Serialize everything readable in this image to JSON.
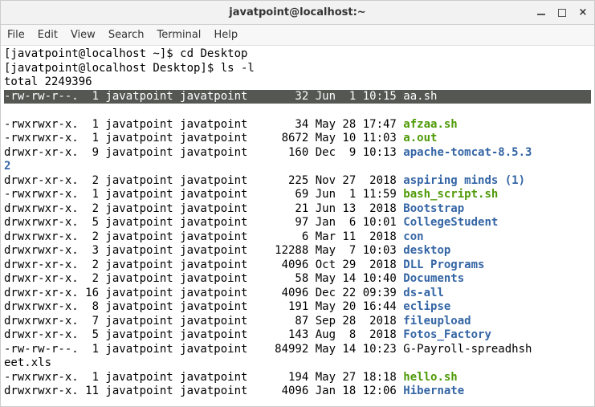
{
  "window": {
    "title": "javatpoint@localhost:~"
  },
  "menu": {
    "items": [
      "File",
      "Edit",
      "View",
      "Search",
      "Terminal",
      "Help"
    ]
  },
  "colors": {
    "exe": "#4e9a06",
    "dir": "#3465a4",
    "file": "#000000",
    "highlight_bg": "#555753",
    "highlight_fg": "#ffffff",
    "background": "#ffffff",
    "text": "#000000"
  },
  "terminal": {
    "prompt1": "[javatpoint@localhost ~]$ ",
    "cmd1": "cd Desktop",
    "prompt2": "[javatpoint@localhost Desktop]$ ",
    "cmd2": "ls -l",
    "total": "total 2249396",
    "rows": [
      {
        "perm": "-rw-rw-r--.",
        "links": "1",
        "owner": "javatpoint",
        "group": "javatpoint",
        "size": "32",
        "mon": "Jun",
        "day": "1",
        "time": "10:15",
        "name": "aa.sh",
        "type": "hl"
      },
      {
        "perm": "-rwxrwxr-x.",
        "links": "1",
        "owner": "javatpoint",
        "group": "javatpoint",
        "size": "34",
        "mon": "May",
        "day": "28",
        "time": "17:47",
        "name": "afzaa.sh",
        "type": "exe"
      },
      {
        "perm": "-rwxrwxr-x.",
        "links": "1",
        "owner": "javatpoint",
        "group": "javatpoint",
        "size": "8672",
        "mon": "May",
        "day": "10",
        "time": "11:03",
        "name": "a.out",
        "type": "exe"
      },
      {
        "perm": "drwxr-xr-x.",
        "links": "9",
        "owner": "javatpoint",
        "group": "javatpoint",
        "size": "160",
        "mon": "Dec",
        "day": "9",
        "time": "10:13",
        "name": "apache-tomcat-8.5.3",
        "type": "dir",
        "wrap": "2"
      },
      {
        "perm": "drwxr-xr-x.",
        "links": "2",
        "owner": "javatpoint",
        "group": "javatpoint",
        "size": "225",
        "mon": "Nov",
        "day": "27",
        "time": " 2018",
        "name": "aspiring minds (1)",
        "type": "dir"
      },
      {
        "perm": "-rwxrwxr-x.",
        "links": "1",
        "owner": "javatpoint",
        "group": "javatpoint",
        "size": "69",
        "mon": "Jun",
        "day": "1",
        "time": "11:59",
        "name": "bash_script.sh",
        "type": "exe"
      },
      {
        "perm": "drwxrwxr-x.",
        "links": "2",
        "owner": "javatpoint",
        "group": "javatpoint",
        "size": "21",
        "mon": "Jun",
        "day": "13",
        "time": " 2018",
        "name": "Bootstrap",
        "type": "dir"
      },
      {
        "perm": "drwxrwxr-x.",
        "links": "5",
        "owner": "javatpoint",
        "group": "javatpoint",
        "size": "97",
        "mon": "Jan",
        "day": "6",
        "time": "10:01",
        "name": "CollegeStudent",
        "type": "dir"
      },
      {
        "perm": "drwxrwxr-x.",
        "links": "2",
        "owner": "javatpoint",
        "group": "javatpoint",
        "size": "6",
        "mon": "Mar",
        "day": "11",
        "time": " 2018",
        "name": "con",
        "type": "dir"
      },
      {
        "perm": "drwxrwxr-x.",
        "links": "3",
        "owner": "javatpoint",
        "group": "javatpoint",
        "size": "12288",
        "mon": "May",
        "day": "7",
        "time": "10:03",
        "name": "desktop",
        "type": "dir"
      },
      {
        "perm": "drwxr-xr-x.",
        "links": "2",
        "owner": "javatpoint",
        "group": "javatpoint",
        "size": "4096",
        "mon": "Oct",
        "day": "29",
        "time": " 2018",
        "name": "DLL Programs",
        "type": "dir"
      },
      {
        "perm": "drwxr-xr-x.",
        "links": "2",
        "owner": "javatpoint",
        "group": "javatpoint",
        "size": "58",
        "mon": "May",
        "day": "14",
        "time": "10:40",
        "name": "Documents",
        "type": "dir"
      },
      {
        "perm": "drwxr-xr-x.",
        "links": "16",
        "owner": "javatpoint",
        "group": "javatpoint",
        "size": "4096",
        "mon": "Dec",
        "day": "22",
        "time": "09:39",
        "name": "ds-all",
        "type": "dir"
      },
      {
        "perm": "drwxrwxr-x.",
        "links": "8",
        "owner": "javatpoint",
        "group": "javatpoint",
        "size": "191",
        "mon": "May",
        "day": "20",
        "time": "16:44",
        "name": "eclipse",
        "type": "dir"
      },
      {
        "perm": "drwxrwxr-x.",
        "links": "7",
        "owner": "javatpoint",
        "group": "javatpoint",
        "size": "87",
        "mon": "Sep",
        "day": "28",
        "time": " 2018",
        "name": "fileupload",
        "type": "dir"
      },
      {
        "perm": "drwxr-xr-x.",
        "links": "5",
        "owner": "javatpoint",
        "group": "javatpoint",
        "size": "143",
        "mon": "Aug",
        "day": "8",
        "time": " 2018",
        "name": "Fotos_Factory",
        "type": "dir"
      },
      {
        "perm": "-rw-rw-r--.",
        "links": "1",
        "owner": "javatpoint",
        "group": "javatpoint",
        "size": "84992",
        "mon": "May",
        "day": "14",
        "time": "10:23",
        "name": "G-Payroll-spreadhsh",
        "type": "file",
        "wrap": "eet.xls"
      },
      {
        "perm": "-rwxrwxr-x.",
        "links": "1",
        "owner": "javatpoint",
        "group": "javatpoint",
        "size": "194",
        "mon": "May",
        "day": "27",
        "time": "18:18",
        "name": "hello.sh",
        "type": "exe"
      },
      {
        "perm": "drwxrwxr-x.",
        "links": "11",
        "owner": "javatpoint",
        "group": "javatpoint",
        "size": "4096",
        "mon": "Jan",
        "day": "18",
        "time": "12:06",
        "name": "Hibernate",
        "type": "dir"
      }
    ]
  }
}
